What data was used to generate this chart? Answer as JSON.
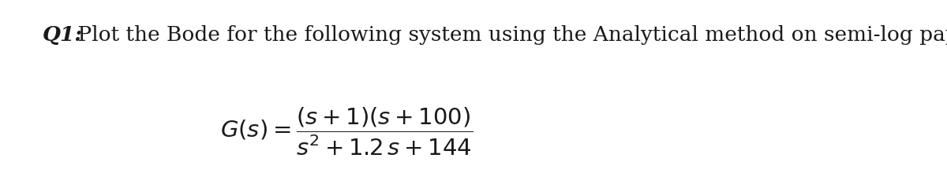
{
  "background_color": "#ffffff",
  "question_label": "Q1:",
  "question_text": " Plot the Bode for the following system using the Analytical method on semi-log paper.",
  "math_expression": "$G(s) = \\dfrac{(s + 1)(s + 100)}{s^2 + 1.2\\, s + 144}$",
  "title_fontsize": 19,
  "math_fontsize": 21,
  "q_label_style": "italic",
  "q_label_weight": "bold",
  "text_color": "#1a1a1a"
}
